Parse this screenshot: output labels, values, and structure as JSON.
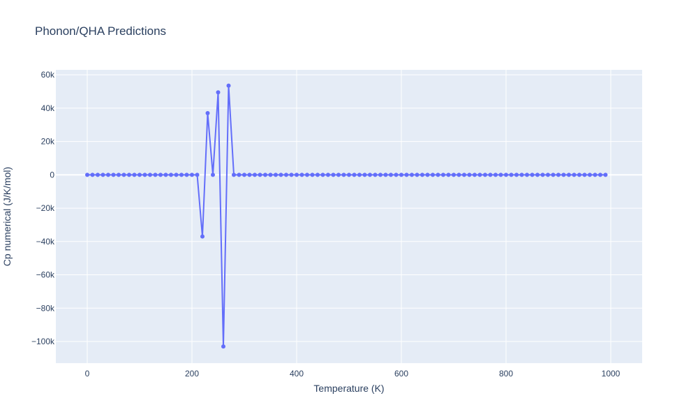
{
  "chart_data": {
    "type": "line",
    "title": "Phonon/QHA Predictions",
    "xlabel": "Temperature (K)",
    "ylabel": "Cp numerical (J/K/mol)",
    "xlim": [
      -60,
      1060
    ],
    "ylim": [
      -113000,
      63000
    ],
    "x_ticks": [
      0,
      200,
      400,
      600,
      800,
      1000
    ],
    "x_tick_labels": [
      "0",
      "200",
      "400",
      "600",
      "800",
      "1000"
    ],
    "y_ticks": [
      60000,
      40000,
      20000,
      0,
      -20000,
      -40000,
      -60000,
      -80000,
      -100000
    ],
    "y_tick_labels": [
      "60k",
      "40k",
      "20k",
      "0",
      "−20k",
      "−40k",
      "−60k",
      "−80k",
      "−100k"
    ],
    "grid": true,
    "series": [
      {
        "color": "#636efa",
        "mode": "lines+markers",
        "x": [
          0,
          10,
          20,
          30,
          40,
          50,
          60,
          70,
          80,
          90,
          100,
          110,
          120,
          130,
          140,
          150,
          160,
          170,
          180,
          190,
          200,
          210,
          220,
          230,
          240,
          250,
          260,
          270,
          280,
          290,
          300,
          310,
          320,
          330,
          340,
          350,
          360,
          370,
          380,
          390,
          400,
          410,
          420,
          430,
          440,
          450,
          460,
          470,
          480,
          490,
          500,
          510,
          520,
          530,
          540,
          550,
          560,
          570,
          580,
          590,
          600,
          610,
          620,
          630,
          640,
          650,
          660,
          670,
          680,
          690,
          700,
          710,
          720,
          730,
          740,
          750,
          760,
          770,
          780,
          790,
          800,
          810,
          820,
          830,
          840,
          850,
          860,
          870,
          880,
          890,
          900,
          910,
          920,
          930,
          940,
          950,
          960,
          970,
          980,
          990
        ],
        "y": [
          0,
          0,
          0,
          0,
          0,
          0,
          0,
          0,
          0,
          0,
          0,
          0,
          0,
          0,
          0,
          0,
          0,
          0,
          0,
          0,
          0,
          0,
          -37000,
          37000,
          0,
          49500,
          -103000,
          53500,
          0,
          0,
          0,
          0,
          0,
          0,
          0,
          0,
          0,
          0,
          0,
          0,
          0,
          0,
          0,
          0,
          0,
          0,
          0,
          0,
          0,
          0,
          0,
          0,
          0,
          0,
          0,
          0,
          0,
          0,
          0,
          0,
          0,
          0,
          0,
          0,
          0,
          0,
          0,
          0,
          0,
          0,
          0,
          0,
          0,
          0,
          0,
          0,
          0,
          0,
          0,
          0,
          0,
          0,
          0,
          0,
          0,
          0,
          0,
          0,
          0,
          0,
          0,
          0,
          0,
          0,
          0,
          0,
          0,
          0,
          0,
          0
        ]
      }
    ]
  }
}
